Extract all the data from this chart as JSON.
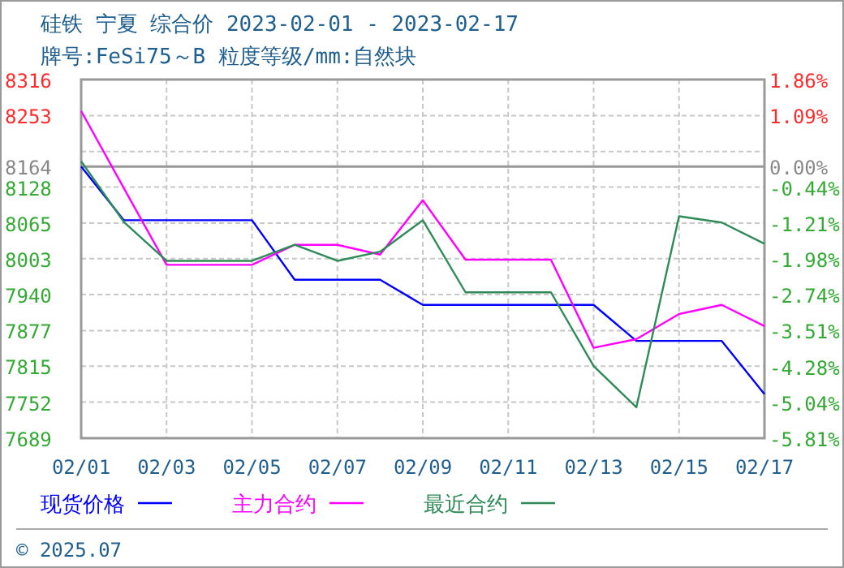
{
  "chart_data": {
    "type": "line",
    "title": "硅铁 宁夏 综合价 2023-02-01 - 2023-02-17",
    "subtitle": "牌号:FeSi75～B 粒度等级/mm:自然块",
    "x": [
      "2023-02-01",
      "2023-02-02",
      "2023-02-03",
      "2023-02-04",
      "2023-02-05",
      "2023-02-06",
      "2023-02-07",
      "2023-02-08",
      "2023-02-09",
      "2023-02-10",
      "2023-02-11",
      "2023-02-12",
      "2023-02-13",
      "2023-02-14",
      "2023-02-15",
      "2023-02-16",
      "2023-02-17"
    ],
    "series": [
      {
        "name": "现货价格",
        "color": "#0000ff",
        "values": [
          8164,
          8070,
          8070,
          8070,
          8070,
          7966,
          7966,
          7966,
          7922,
          7922,
          7922,
          7922,
          7922,
          7859,
          7859,
          7859,
          7766
        ]
      },
      {
        "name": "主力合约",
        "color": "#ff00ff",
        "values": [
          8261,
          8126,
          7992,
          7992,
          7992,
          8027,
          8027,
          8010,
          8105,
          8001,
          8001,
          8001,
          7847,
          7862,
          7906,
          7922,
          7885
        ]
      },
      {
        "name": "最近合约",
        "color": "#2e8b57",
        "values": [
          8173,
          8067,
          7999,
          7999,
          7999,
          8027,
          7999,
          8015,
          8070,
          7944,
          7944,
          7944,
          7815,
          7743,
          8077,
          8066,
          8029
        ]
      }
    ],
    "xlim": [
      "2023-02-01",
      "2023-02-17"
    ],
    "xticks": [
      {
        "value": "2023-02-01",
        "label": "02/01"
      },
      {
        "value": "2023-02-03",
        "label": "02/03"
      },
      {
        "value": "2023-02-05",
        "label": "02/05"
      },
      {
        "value": "2023-02-07",
        "label": "02/07"
      },
      {
        "value": "2023-02-09",
        "label": "02/09"
      },
      {
        "value": "2023-02-11",
        "label": "02/11"
      },
      {
        "value": "2023-02-13",
        "label": "02/13"
      },
      {
        "value": "2023-02-15",
        "label": "02/15"
      },
      {
        "value": "2023-02-17",
        "label": "02/17"
      }
    ],
    "ylim": [
      7689,
      8316
    ],
    "yticks": [
      8316,
      8253,
      {
        "value": 8190,
        "label": null
      },
      8164,
      8128,
      8065,
      8003,
      7940,
      7877,
      7815,
      7752,
      7689
    ],
    "y2lim": [
      -5.81,
      1.86
    ],
    "y2ticks": [
      {
        "value": 1.86,
        "label": "1.86%"
      },
      {
        "value": 1.09,
        "label": "1.09%"
      },
      {
        "value": 0,
        "label": "0.00%"
      },
      {
        "value": -0.44,
        "label": "-0.44%"
      },
      {
        "value": -1.21,
        "label": "-1.21%"
      },
      {
        "value": -1.98,
        "label": "-1.98%"
      },
      {
        "value": -2.74,
        "label": "-2.74%"
      },
      {
        "value": -3.51,
        "label": "-3.51%"
      },
      {
        "value": -4.28,
        "label": "-4.28%"
      },
      {
        "value": -5.04,
        "label": "-5.04%"
      },
      {
        "value": -5.81,
        "label": "-5.81%"
      }
    ],
    "ref_lines": [
      {
        "axis": "y",
        "value": 8164,
        "color": "#999999"
      }
    ],
    "grid": true,
    "legend": "bottom",
    "marker": "none",
    "line_style": "solid",
    "annotations": [
      "© 2025.07"
    ]
  }
}
